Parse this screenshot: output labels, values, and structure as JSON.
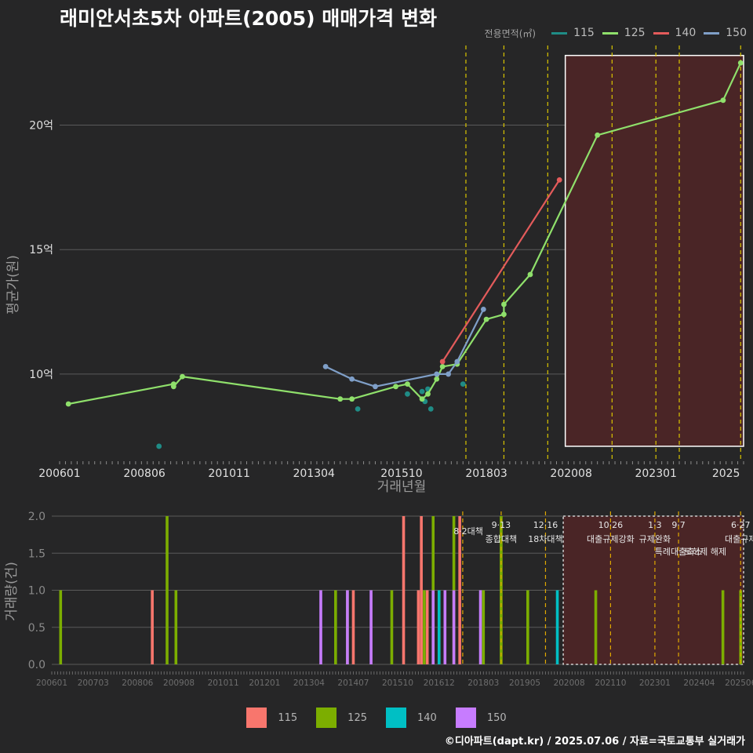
{
  "title": "래미안서초5차 아파트(2005) 매매가격 변화",
  "credit": "©디아파트(dapt.kr) / 2025.07.06 / 자료=국토교통부 실거래가",
  "legend_top": {
    "title": "전용면적(㎡)",
    "items": [
      {
        "label": "115",
        "color": "#1f8c86"
      },
      {
        "label": "125",
        "color": "#8fe06b"
      },
      {
        "label": "140",
        "color": "#e35b5b"
      },
      {
        "label": "150",
        "color": "#7f9fc8"
      }
    ]
  },
  "legend_bottom": {
    "items": [
      {
        "label": "115",
        "color": "#f8766d"
      },
      {
        "label": "125",
        "color": "#7cae00"
      },
      {
        "label": "140",
        "color": "#00bfc4"
      },
      {
        "label": "150",
        "color": "#c77cff"
      }
    ]
  },
  "chart_data": [
    {
      "type": "line",
      "xlabel": "거래년월",
      "ylabel": "평균가(원)",
      "xlim": [
        "2006-01",
        "2025-07"
      ],
      "ylim": [
        6.5,
        23.2
      ],
      "yticks": [
        {
          "value": 10,
          "label": "10억"
        },
        {
          "value": 15,
          "label": "15억"
        },
        {
          "value": 20,
          "label": "20억"
        }
      ],
      "xticks": [
        "200601",
        "200806",
        "201011",
        "201304",
        "201510",
        "201803",
        "202008",
        "202301",
        "2025"
      ],
      "grid": true,
      "policy_lines": [
        "2017-08",
        "2018-09",
        "2019-12",
        "2021-10",
        "2023-01",
        "2023-09",
        "2025-06"
      ],
      "highlight_range": [
        "2020-06",
        "2025-07"
      ],
      "series": [
        {
          "name": "115",
          "color": "#1f8c86",
          "points": [
            [
              "2008-11",
              7.1
            ],
            [
              "2014-07",
              8.6
            ],
            [
              "2015-12",
              9.2
            ],
            [
              "2016-05",
              9.3
            ],
            [
              "2016-06",
              8.9
            ],
            [
              "2016-07",
              9.4
            ],
            [
              "2016-08",
              8.6
            ],
            [
              "2017-07",
              9.6
            ]
          ]
        },
        {
          "name": "125",
          "color": "#8fe06b",
          "points": [
            [
              "2006-04",
              8.8
            ],
            [
              "2009-04",
              9.6
            ],
            [
              "2009-04",
              9.5
            ],
            [
              "2009-07",
              9.9
            ],
            [
              "2014-01",
              9.0
            ],
            [
              "2014-05",
              9.0
            ],
            [
              "2015-08",
              9.5
            ],
            [
              "2015-12",
              9.6
            ],
            [
              "2016-05",
              9.0
            ],
            [
              "2016-07",
              9.2
            ],
            [
              "2016-10",
              9.8
            ],
            [
              "2016-12",
              10.3
            ],
            [
              "2017-05",
              10.4
            ],
            [
              "2018-03",
              12.2
            ],
            [
              "2018-09",
              12.4
            ],
            [
              "2018-09",
              12.8
            ],
            [
              "2019-06",
              14.0
            ],
            [
              "2021-05",
              19.6
            ],
            [
              "2024-12",
              21.0
            ],
            [
              "2025-06",
              22.5
            ]
          ]
        },
        {
          "name": "140",
          "color": "#e35b5b",
          "points": [
            [
              "2016-12",
              10.5
            ],
            [
              "2020-04",
              17.8
            ]
          ]
        },
        {
          "name": "150",
          "color": "#7f9fc8",
          "points": [
            [
              "2013-08",
              10.3
            ],
            [
              "2014-05",
              9.8
            ],
            [
              "2015-01",
              9.5
            ],
            [
              "2016-10",
              10.0
            ],
            [
              "2017-02",
              10.0
            ],
            [
              "2017-05",
              10.5
            ],
            [
              "2018-02",
              12.6
            ]
          ]
        }
      ]
    },
    {
      "type": "bar",
      "xlabel": "",
      "ylabel": "거래량(건)",
      "xlim": [
        "2006-01",
        "2025-07"
      ],
      "ylim": [
        0,
        2
      ],
      "yticks": [
        "0.0",
        "0.5",
        "1.0",
        "1.5",
        "2.0"
      ],
      "xticks": [
        "200601",
        "200703",
        "200806",
        "200908",
        "201011",
        "201201",
        "201304",
        "201407",
        "201510",
        "201612",
        "201803",
        "201905",
        "202008",
        "202110",
        "202301",
        "202404",
        "202506"
      ],
      "grid": true,
      "policy_lines": [
        "2017-08",
        "2018-09",
        "2019-12",
        "2021-10",
        "2023-01",
        "2023-09",
        "2025-06"
      ],
      "highlight_range": [
        "2020-06",
        "2025-07"
      ],
      "policy_labels": [
        {
          "date": "2017-08",
          "line1": "",
          "line2": "8·2대책"
        },
        {
          "date": "2018-09",
          "line1": "9·13",
          "line2": "종합대책"
        },
        {
          "date": "2019-12",
          "line1": "12·16",
          "line2": "18차대책"
        },
        {
          "date": "2021-10",
          "line1": "10·26",
          "line2": "대출규제강화"
        },
        {
          "date": "2023-01",
          "line1": "1·3",
          "line2": "규제완화"
        },
        {
          "date": "2023-09",
          "line1": "9·7",
          "line2": "특례대출축소"
        },
        {
          "date": "2024-06",
          "line1": "",
          "line2": "토허제 해제"
        },
        {
          "date": "2025-06",
          "line1": "6·27",
          "line2": "대출규제"
        }
      ],
      "series": [
        {
          "name": "115",
          "color": "#f8766d",
          "bars": [
            [
              "2008-11",
              1
            ],
            [
              "2014-07",
              1
            ],
            [
              "2015-12",
              2
            ],
            [
              "2016-05",
              1
            ],
            [
              "2016-06",
              2
            ],
            [
              "2016-08",
              1
            ],
            [
              "2017-07",
              2
            ]
          ]
        },
        {
          "name": "125",
          "color": "#7cae00",
          "bars": [
            [
              "2006-04",
              1
            ],
            [
              "2009-04",
              2
            ],
            [
              "2009-07",
              1
            ],
            [
              "2014-01",
              1
            ],
            [
              "2014-05",
              1
            ],
            [
              "2015-08",
              1
            ],
            [
              "2016-07",
              1
            ],
            [
              "2016-10",
              2
            ],
            [
              "2016-12",
              1
            ],
            [
              "2017-05",
              2
            ],
            [
              "2018-03",
              1
            ],
            [
              "2018-09",
              2
            ],
            [
              "2019-06",
              1
            ],
            [
              "2021-05",
              1
            ],
            [
              "2024-12",
              1
            ],
            [
              "2025-06",
              1
            ]
          ]
        },
        {
          "name": "140",
          "color": "#00bfc4",
          "bars": [
            [
              "2016-12",
              1
            ],
            [
              "2020-04",
              1
            ]
          ]
        },
        {
          "name": "150",
          "color": "#c77cff",
          "bars": [
            [
              "2013-08",
              1
            ],
            [
              "2014-05",
              1
            ],
            [
              "2015-01",
              1
            ],
            [
              "2016-10",
              1
            ],
            [
              "2017-02",
              1
            ],
            [
              "2017-05",
              1
            ],
            [
              "2018-02",
              1
            ]
          ]
        }
      ]
    }
  ]
}
